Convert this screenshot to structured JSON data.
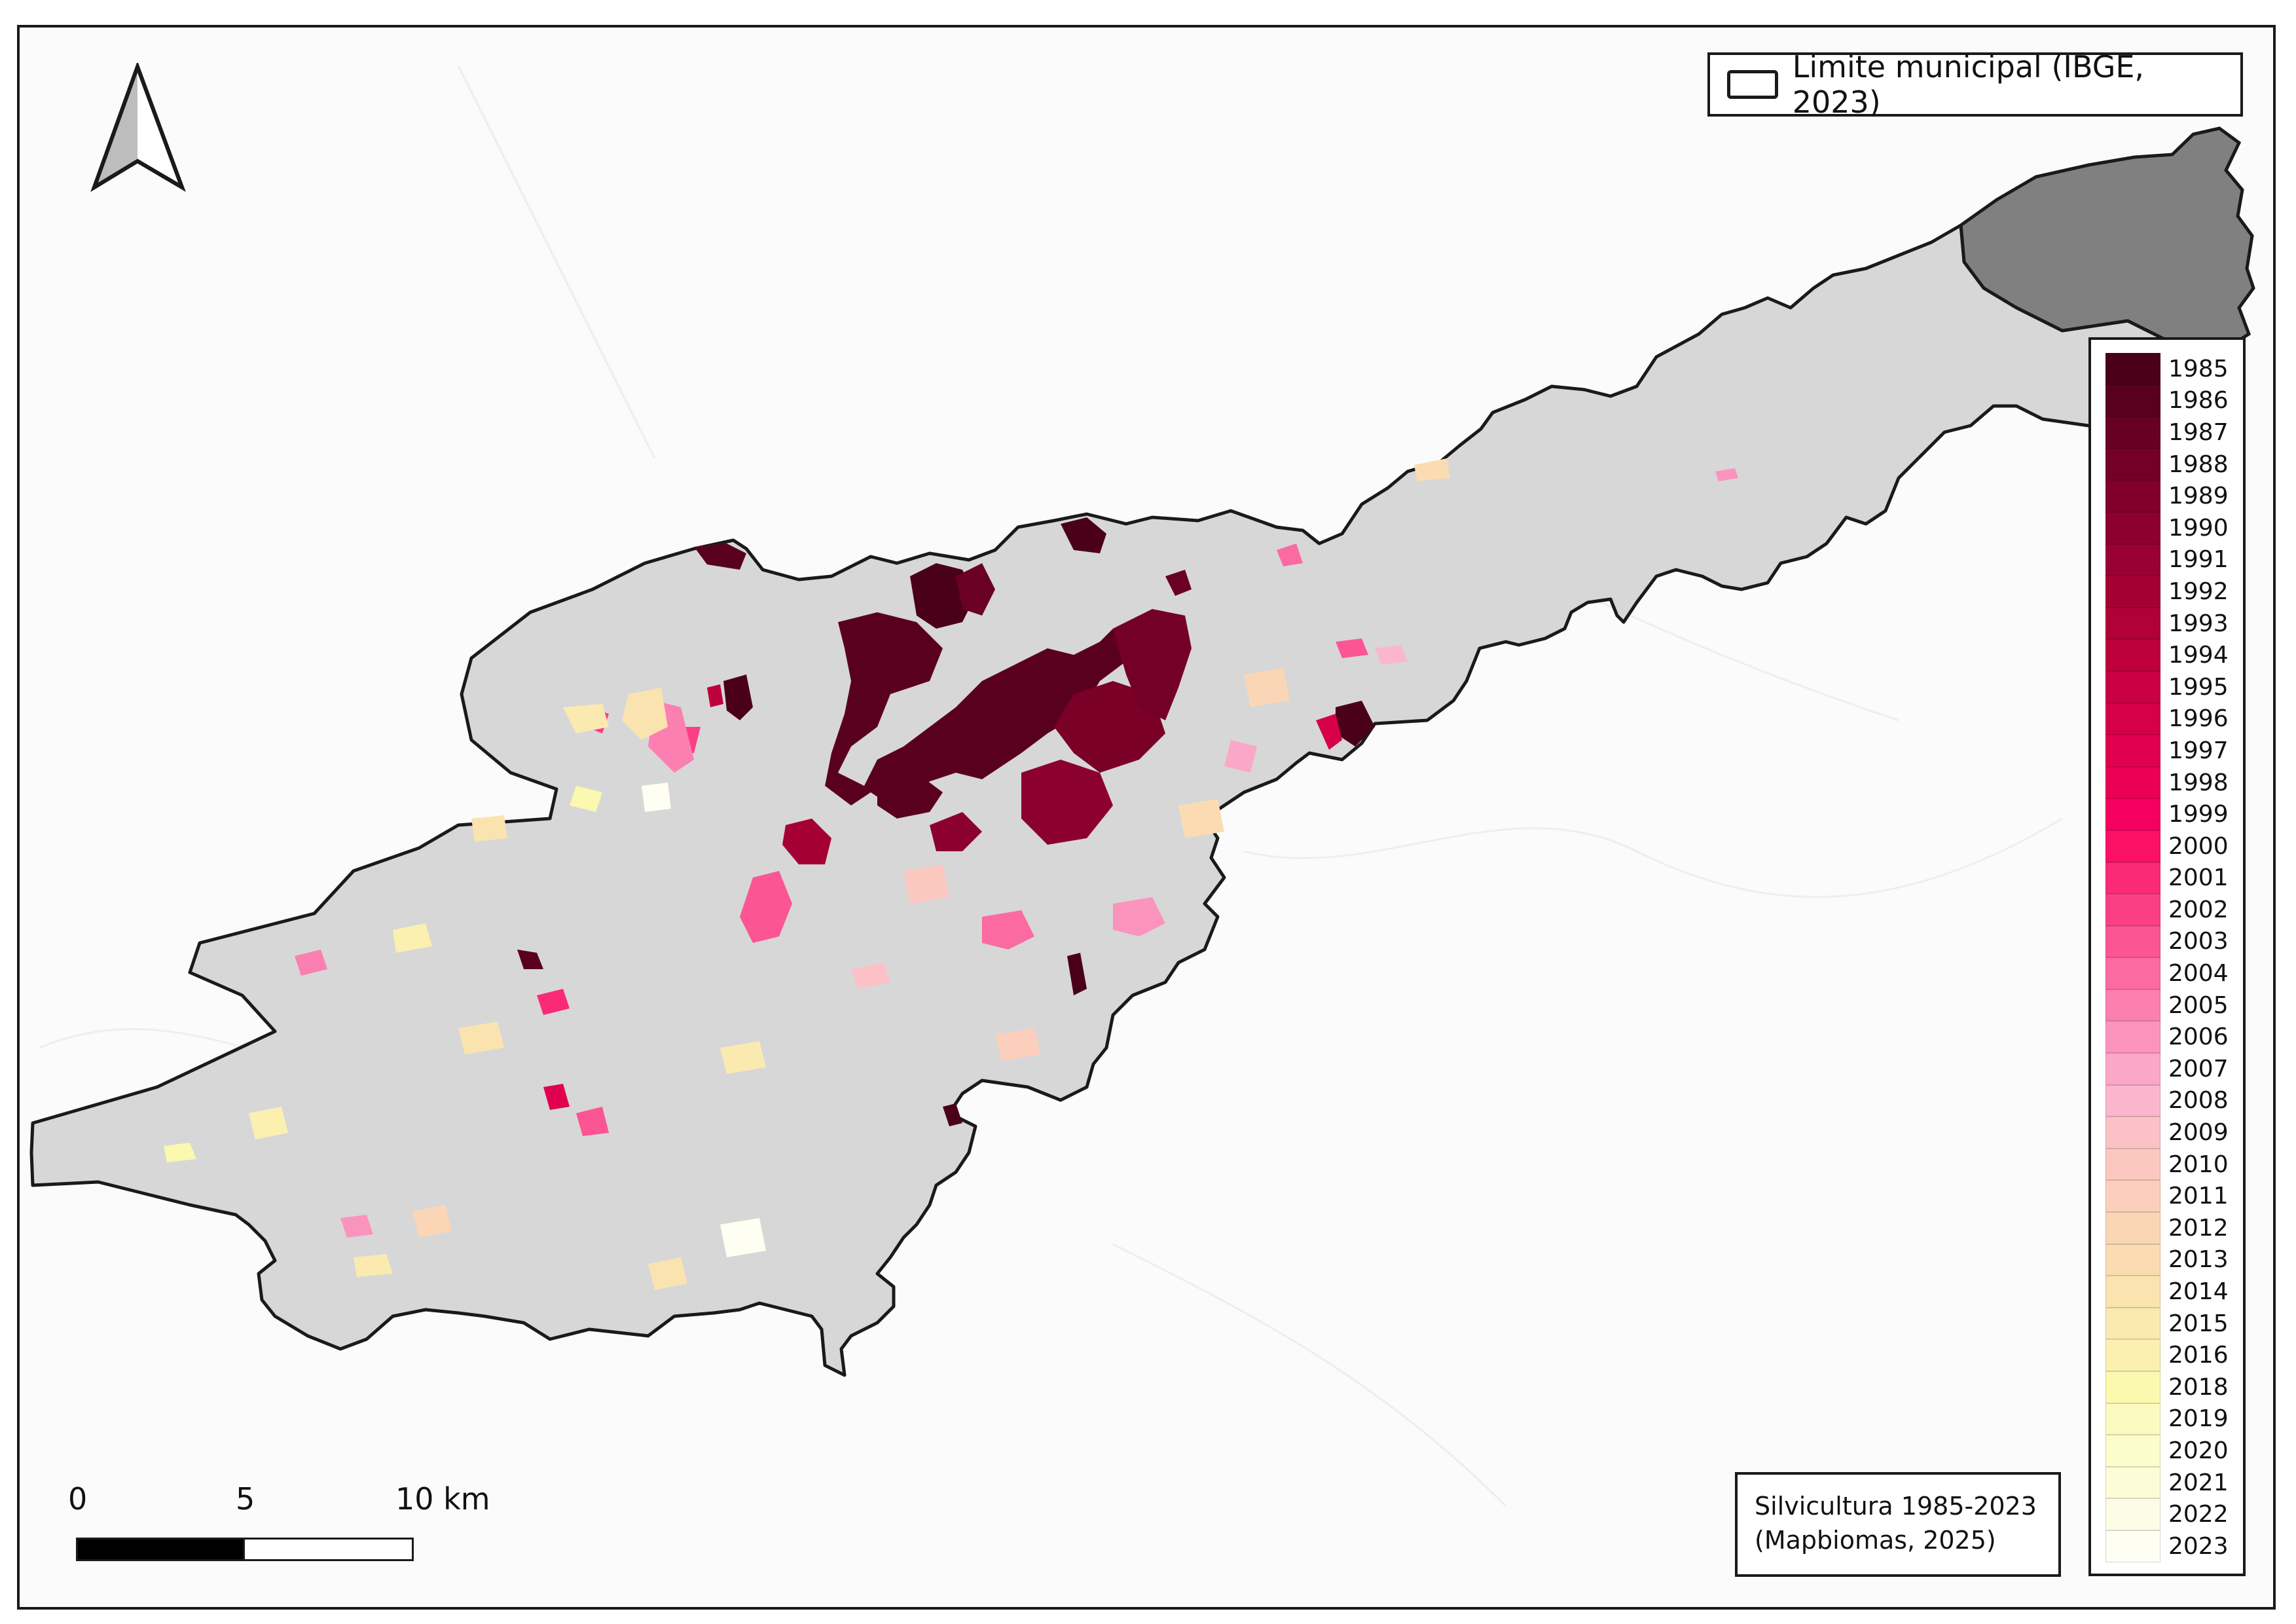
{
  "legend": {
    "boundary_label": "Limite municipal (IBGE, 2023)",
    "years": [
      "1985",
      "1986",
      "1987",
      "1988",
      "1989",
      "1990",
      "1991",
      "1992",
      "1993",
      "1994",
      "1995",
      "1996",
      "1997",
      "1998",
      "1999",
      "2000",
      "2001",
      "2002",
      "2003",
      "2004",
      "2005",
      "2006",
      "2007",
      "2008",
      "2009",
      "2010",
      "2011",
      "2012",
      "2013",
      "2014",
      "2015",
      "2016",
      "2018",
      "2019",
      "2020",
      "2021",
      "2022",
      "2023"
    ],
    "colors": [
      "#4a0019",
      "#5a001f",
      "#680023",
      "#750027",
      "#80002b",
      "#8c002f",
      "#990033",
      "#a50036",
      "#b1003a",
      "#be003f",
      "#c90043",
      "#d60049",
      "#e1004f",
      "#ec0056",
      "#f5005f",
      "#fb1068",
      "#fb2a77",
      "#fb3f84",
      "#fb5593",
      "#fb6aa1",
      "#fb7fb0",
      "#fb94bd",
      "#fba7c8",
      "#fbb6cd",
      "#fbc1c6",
      "#fbc8c0",
      "#fbcfbb",
      "#fbd6b6",
      "#fbdcb2",
      "#fbe3b0",
      "#fbeab0",
      "#fbf0b0",
      "#fbf8b0",
      "#fbfbbf",
      "#fcfccc",
      "#fcfcd8",
      "#fdfde5",
      "#fefef2"
    ]
  },
  "source": {
    "line1": "Silvicultura 1985-2023",
    "line2": "(Mapbiomas, 2025)"
  },
  "scale": {
    "labels": [
      "0",
      "5",
      "10 km"
    ]
  },
  "colors": {
    "municipality_fill": "#d7d7d7",
    "neighbor_fill": "#808080",
    "boundary": "#1a1a1a"
  }
}
